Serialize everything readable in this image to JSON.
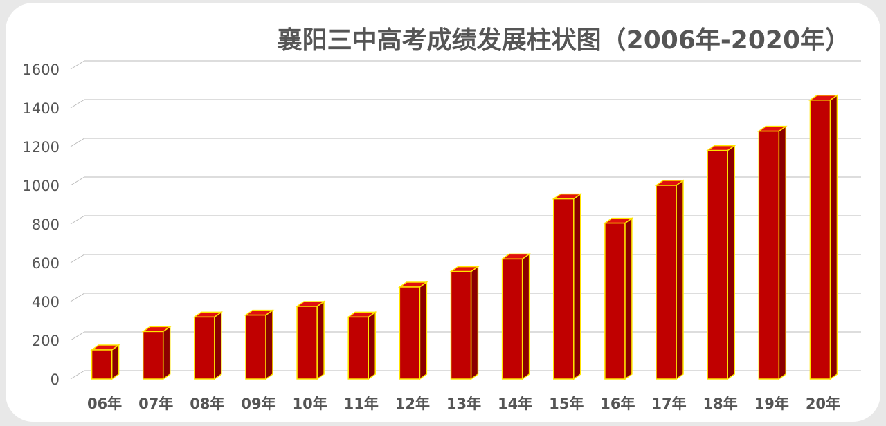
{
  "chart_data": {
    "type": "bar3d",
    "title": "襄阳三中高考成绩发展柱状图（2006年-2020年）",
    "categories": [
      "06年",
      "07年",
      "08年",
      "09年",
      "10年",
      "11年",
      "12年",
      "13年",
      "14年",
      "15年",
      "16年",
      "17年",
      "18年",
      "19年",
      "20年"
    ],
    "values": [
      150,
      245,
      320,
      330,
      375,
      320,
      475,
      555,
      620,
      930,
      805,
      1000,
      1180,
      1280,
      1440
    ],
    "color": "#c00000",
    "edge_color": "#ffe600",
    "ylim": [
      0,
      1600
    ],
    "yticks": [
      0,
      200,
      400,
      600,
      800,
      1000,
      1200,
      1400,
      1600
    ],
    "grid": true
  }
}
